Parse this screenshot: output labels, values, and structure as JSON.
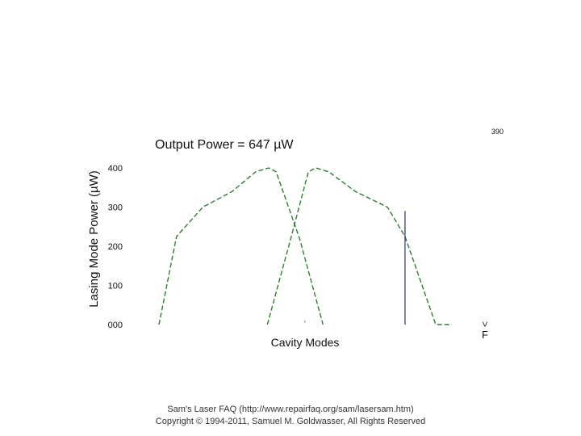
{
  "chart_data": {
    "type": "line",
    "title": "Output Power = 647 µW",
    "xlabel": "Cavity Modes",
    "ylabel": "Lasing Mode Power (µW)",
    "corner_label": "390",
    "frequency_axis_label": "F",
    "frequency_arrow": ">",
    "center_tick": "'",
    "y_ticks": [
      "000",
      "100",
      "200",
      "300",
      "400"
    ],
    "ylim": [
      0,
      420
    ],
    "xlim": [
      0,
      100
    ],
    "grid": false,
    "series": [
      {
        "color": "#2e7d32",
        "dash": "dashed",
        "x": [
          0,
          6,
          15,
          25,
          33,
          37.5,
          40,
          48,
          56
        ],
        "y": [
          0,
          225,
          300,
          340,
          390,
          400,
          390,
          220,
          0
        ]
      },
      {
        "color": "#2e7d32",
        "dash": "dashed",
        "x": [
          37,
          45,
          51,
          53.5,
          58,
          67,
          78,
          84,
          94.5,
          100
        ],
        "y": [
          0,
          220,
          390,
          400,
          390,
          340,
          300,
          225,
          0,
          0
        ]
      }
    ],
    "marker_line": {
      "x": 84,
      "y": 290,
      "color": "#3b3b8f"
    }
  },
  "footer": {
    "line1": "Sam's Laser FAQ (http://www.repairfaq.org/sam/lasersam.htm)",
    "line2": "Copyright © 1994-2011, Samuel M. Goldwasser, All Rights Reserved"
  }
}
